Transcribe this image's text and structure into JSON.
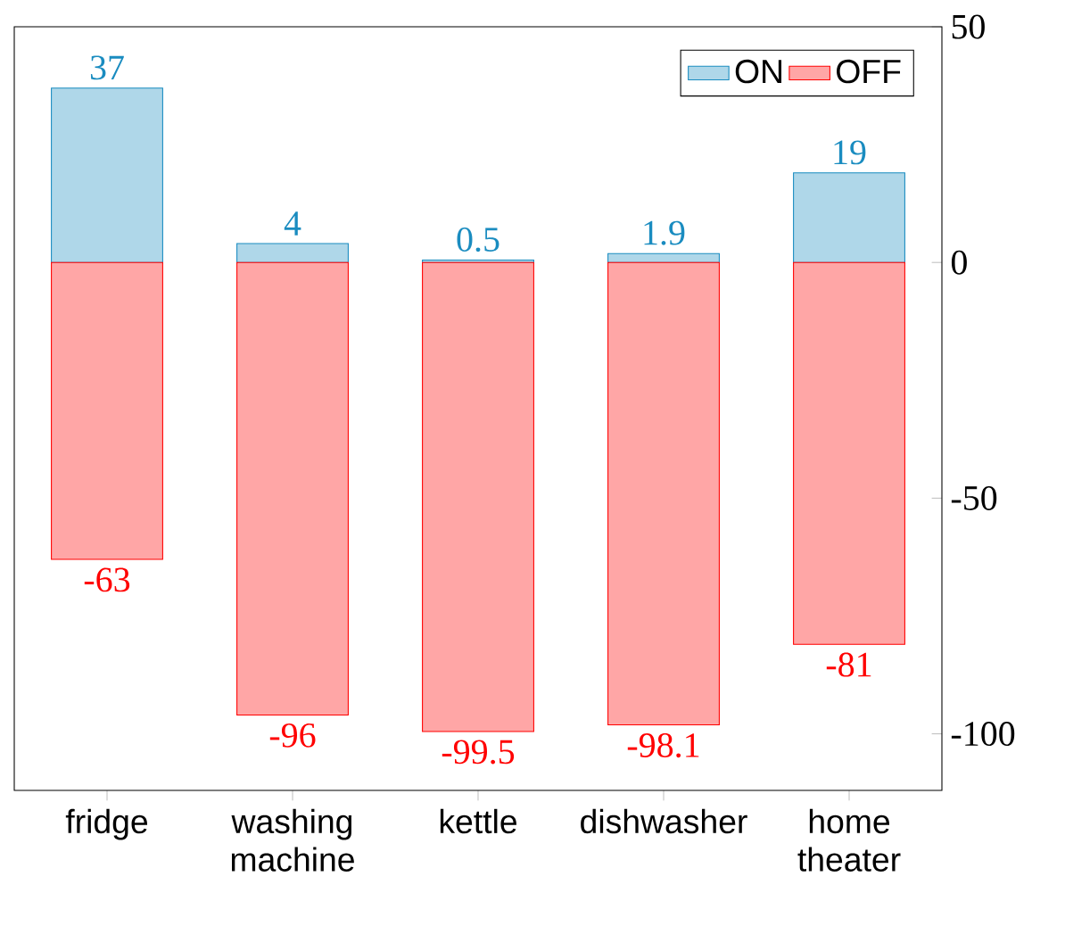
{
  "chart_data": {
    "type": "bar",
    "stacked": true,
    "categories": [
      "fridge",
      "washing machine",
      "kettle",
      "dishwasher",
      "home theater"
    ],
    "series": [
      {
        "name": "ON",
        "color": "#1a8cc0",
        "values": [
          37,
          4,
          0.5,
          1.9,
          19
        ]
      },
      {
        "name": "OFF",
        "color": "#ff0000",
        "values": [
          -63,
          -96,
          -99.5,
          -98.1,
          -81
        ]
      }
    ],
    "ylim": [
      -112,
      50
    ],
    "yticks": [
      -100,
      -50,
      0,
      50
    ],
    "data_labels": true,
    "legend": "top right",
    "grid": false
  }
}
